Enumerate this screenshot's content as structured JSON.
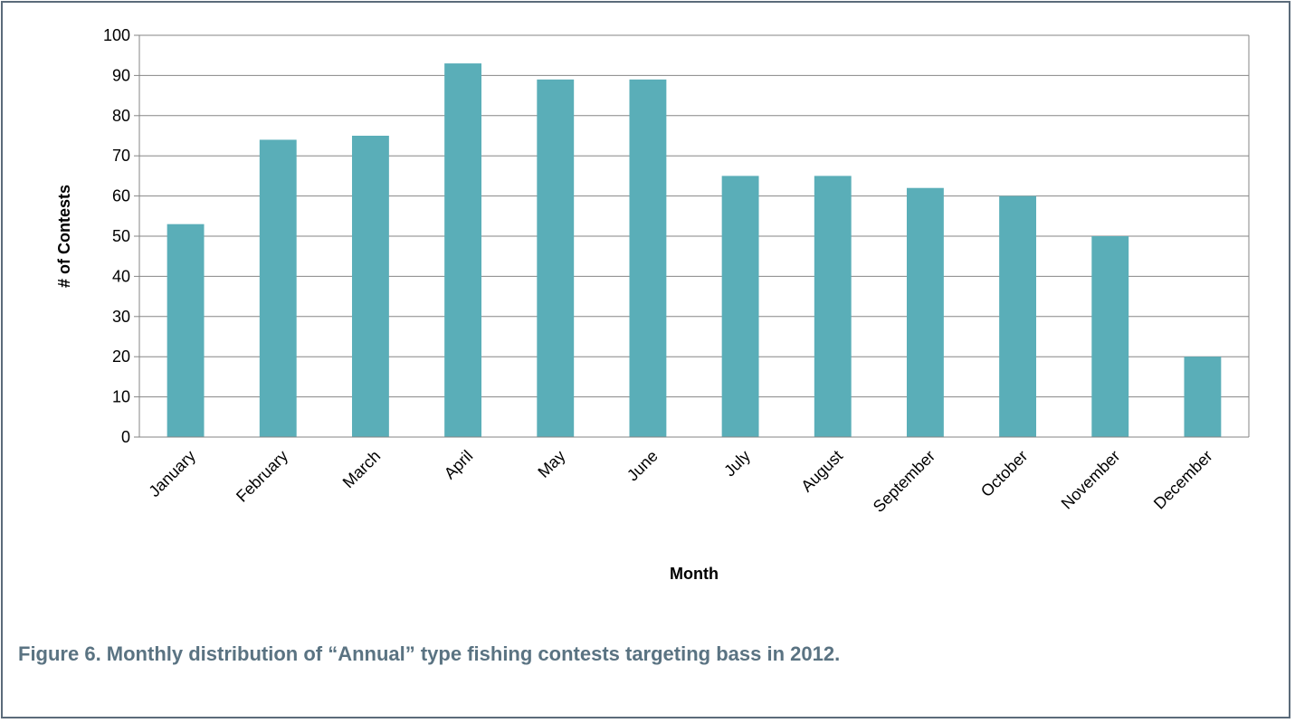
{
  "chart_data": {
    "type": "bar",
    "categories": [
      "January",
      "February",
      "March",
      "April",
      "May",
      "June",
      "July",
      "August",
      "September",
      "October",
      "November",
      "December"
    ],
    "values": [
      53,
      74,
      75,
      93,
      89,
      89,
      65,
      65,
      62,
      60,
      50,
      20
    ],
    "xlabel": "Month",
    "ylabel": "# of Contests",
    "ylim": [
      0,
      100
    ],
    "yticks": [
      0,
      10,
      20,
      30,
      40,
      50,
      60,
      70,
      80,
      90,
      100
    ],
    "grid": true,
    "legend": "none",
    "bar_color": "#5aaeb8"
  },
  "caption": "Figure 6.   Monthly distribution of “Annual” type fishing contests targeting bass in 2012.",
  "colors": {
    "caption": "#5a7382",
    "border": "#5b6b7a",
    "gridline": "#868686"
  }
}
